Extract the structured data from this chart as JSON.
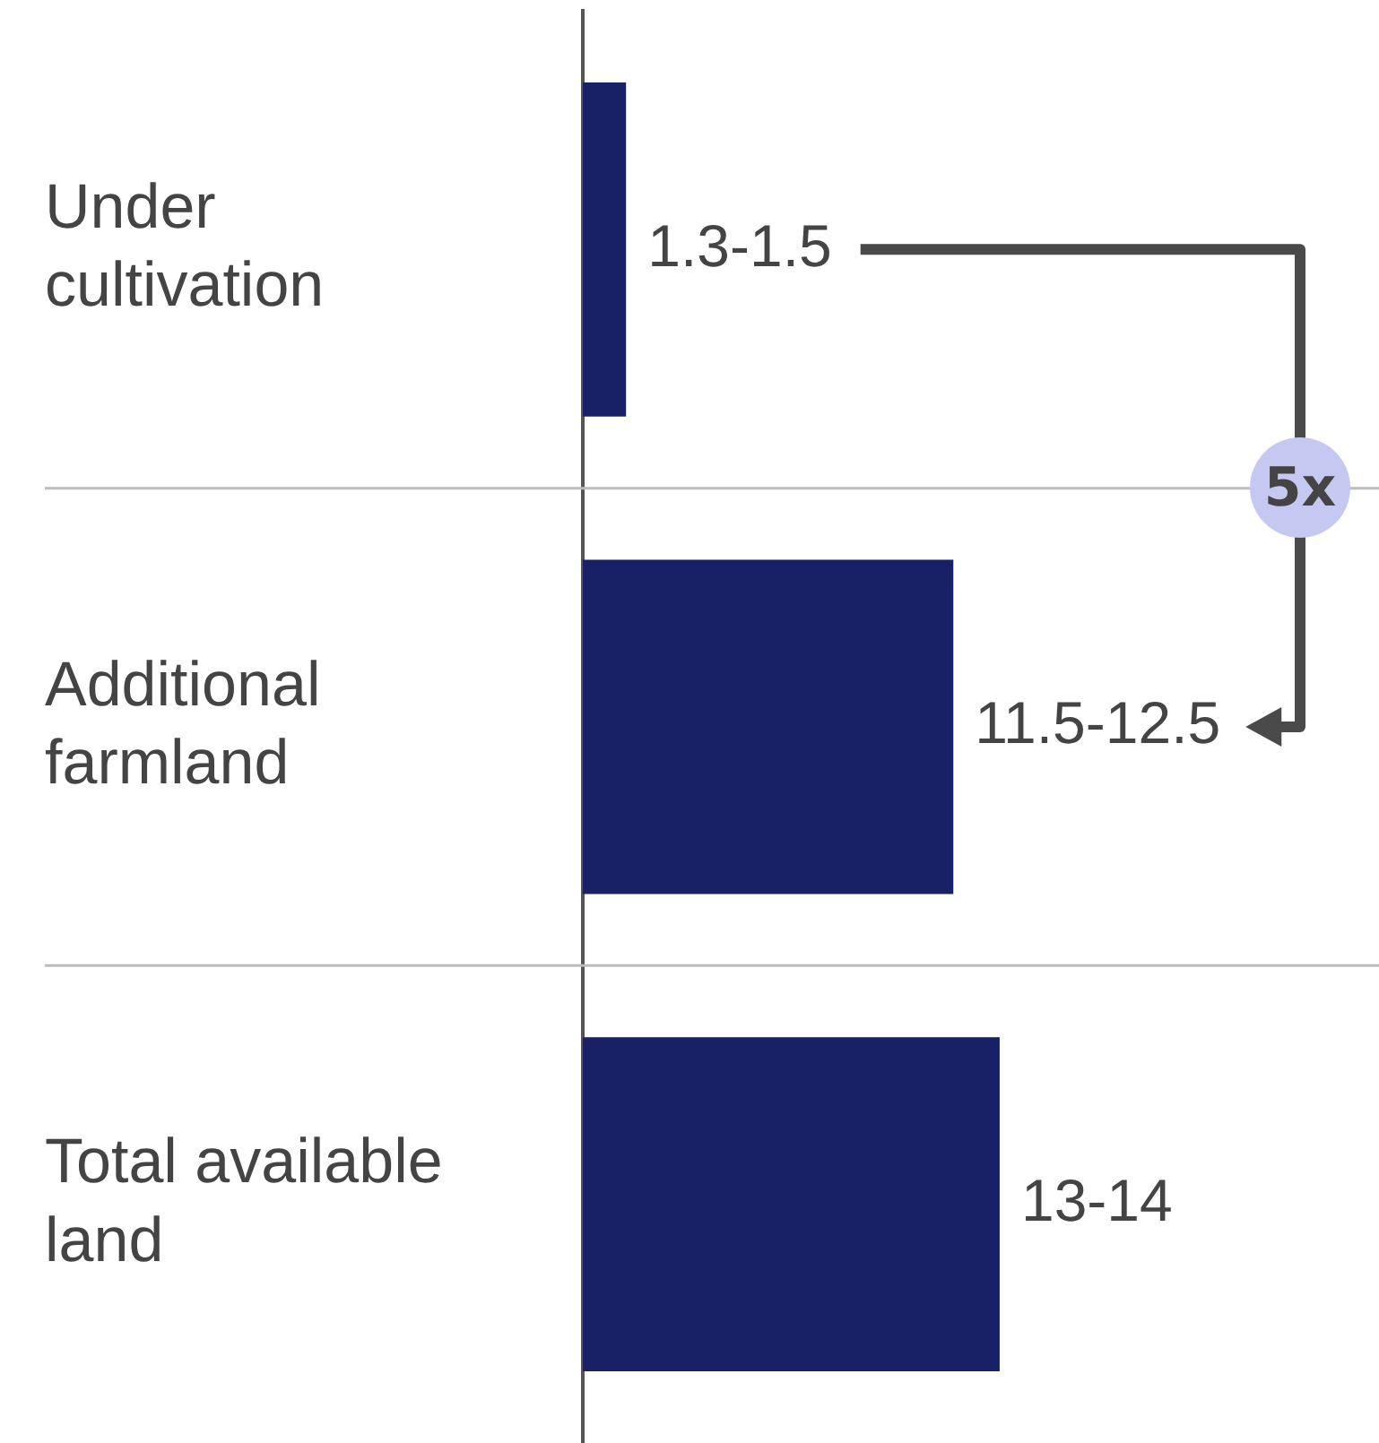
{
  "chart_data": {
    "type": "bar",
    "orientation": "horizontal",
    "grid": "y",
    "tick_labels": "y",
    "categories": [
      "Under cultivation",
      "Additional farmland",
      "Total available land"
    ],
    "values": [
      1.4,
      12,
      13.5
    ],
    "value_labels": [
      "1.3-1.5",
      "11.5-12.5",
      "13-14"
    ],
    "color": "#182066",
    "annotations": [
      "5x"
    ]
  }
}
